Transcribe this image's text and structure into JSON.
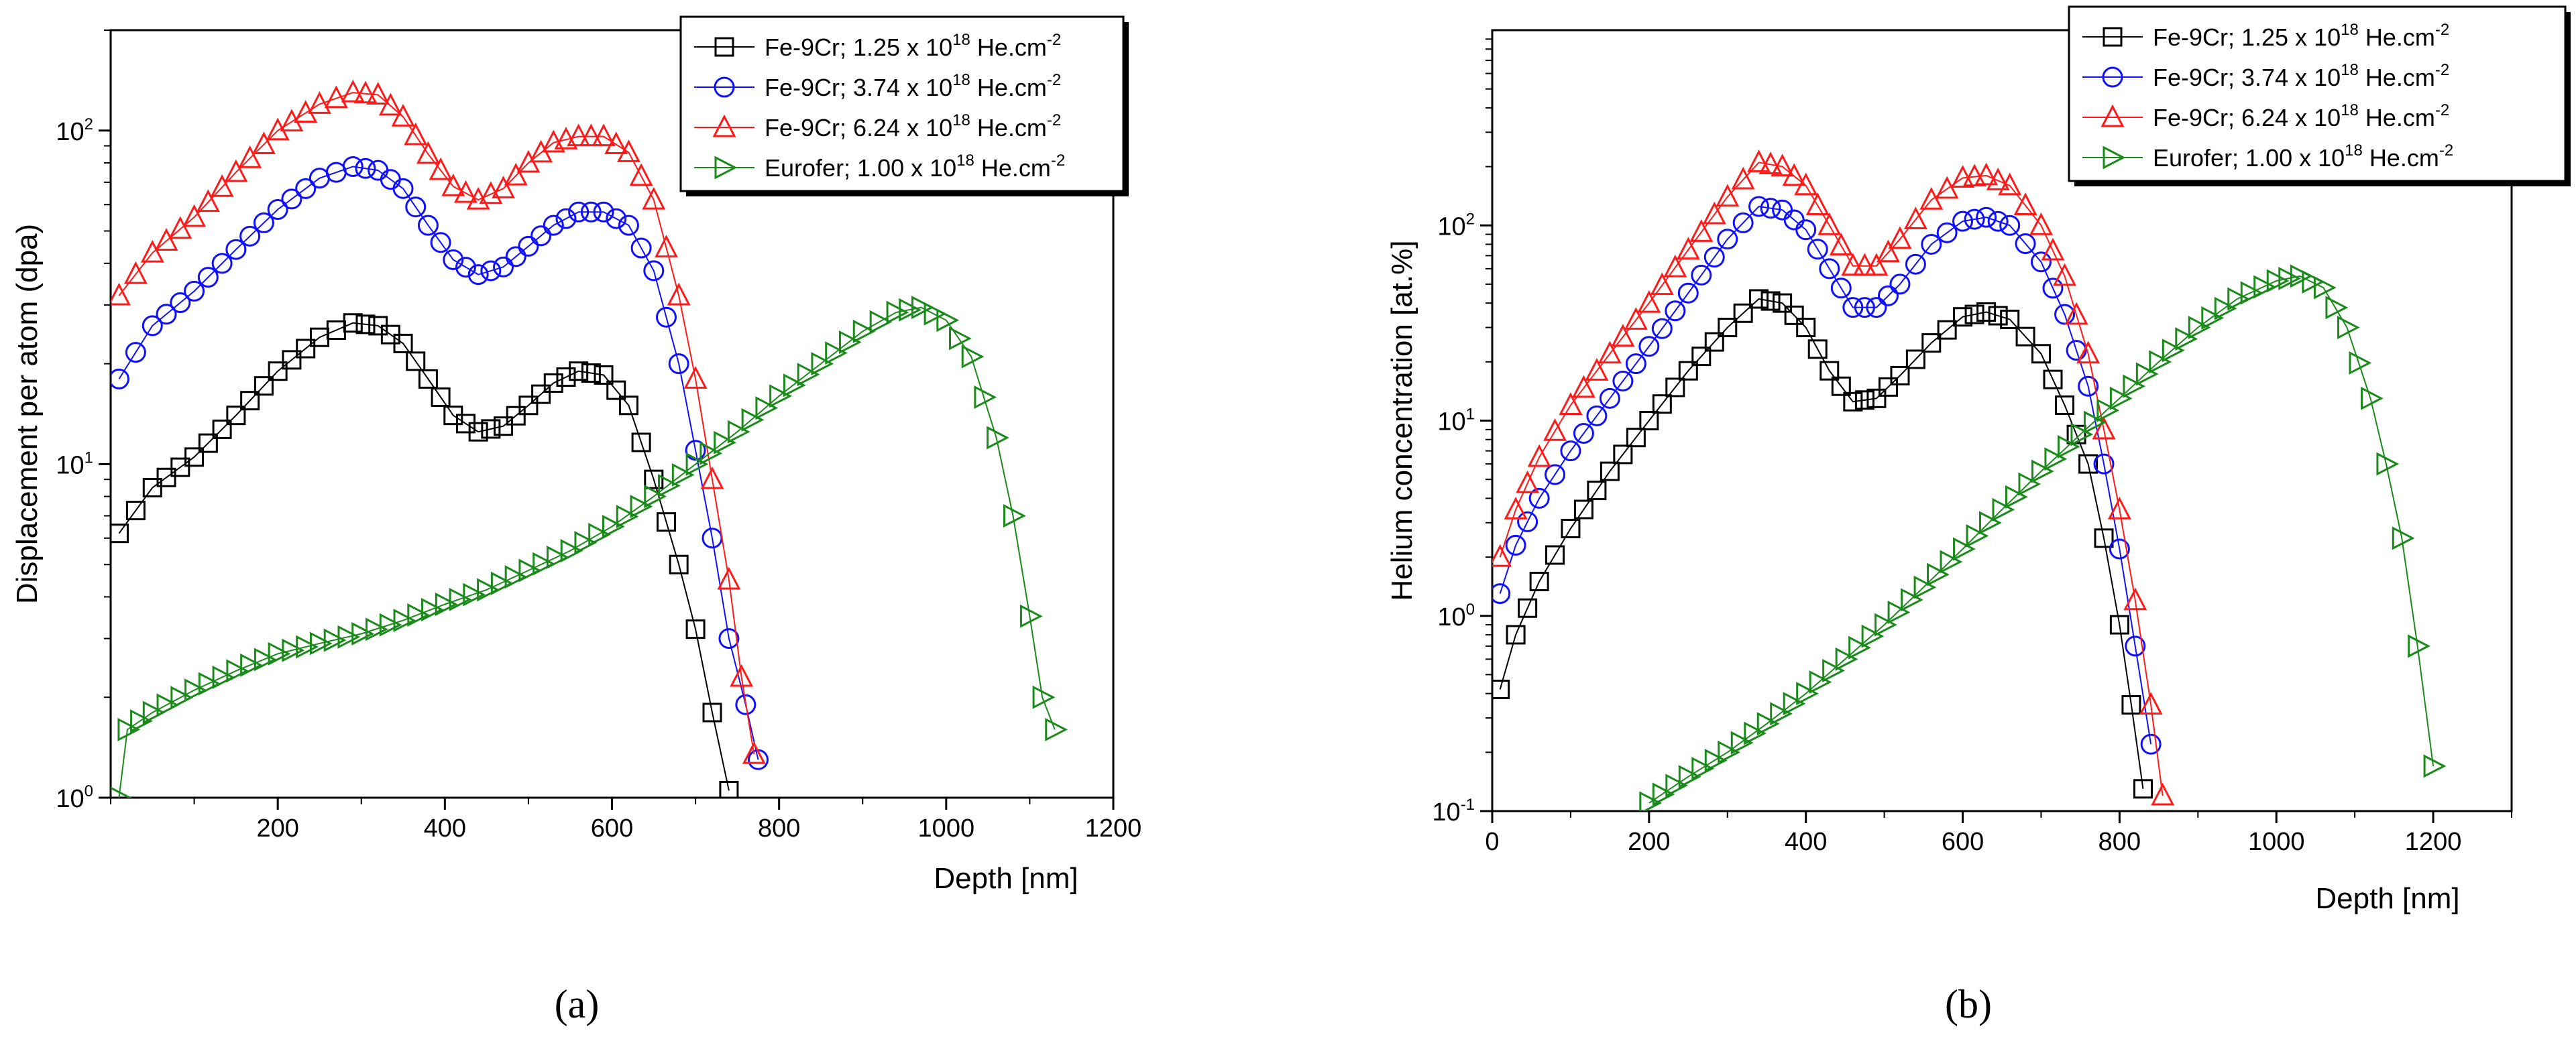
{
  "panel_labels": [
    "(a)",
    "(b)"
  ],
  "colors": {
    "Fe-9Cr 1.25": "#000000",
    "Fe-9Cr 3.74": "#1010ff",
    "Fe-9Cr 6.24": "#ff1a1a",
    "Eurofer 1.00": "#1a8a1a"
  },
  "chart_data": [
    {
      "type": "scatter",
      "panel": "a",
      "xlabel": "Depth [nm]",
      "ylabel": "Displacement per atom (dpa)",
      "xlim": [
        0,
        1200
      ],
      "ylim": [
        1,
        200
      ],
      "yscale": "log",
      "x_ticks": [
        200,
        400,
        600,
        800,
        1000,
        1200
      ],
      "y_ticks": [
        {
          "value": 1,
          "base": "10",
          "exp": "0"
        },
        {
          "value": 10,
          "base": "10",
          "exp": "1"
        },
        {
          "value": 100,
          "base": "10",
          "exp": "2"
        }
      ],
      "legend_position": "top-right",
      "series": [
        {
          "name": "Fe-9Cr; 1.25 x 10",
          "name_exp": "18",
          "name_tail": " He.cm",
          "name_tail_exp": "-2",
          "marker": "square",
          "color": "#000000",
          "x": [
            10,
            50,
            100,
            150,
            200,
            250,
            290,
            320,
            350,
            380,
            410,
            440,
            470,
            500,
            530,
            560,
            590,
            620,
            650,
            680,
            700,
            720,
            740
          ],
          "y": [
            6.2,
            8.5,
            10.5,
            14,
            19,
            24,
            26.5,
            26,
            23,
            18,
            14,
            12.5,
            13,
            15,
            17.5,
            19,
            18.5,
            15,
            9,
            5,
            3.2,
            1.8,
            1.05
          ]
        },
        {
          "name": "Fe-9Cr; 3.74 x 10",
          "name_exp": "18",
          "name_tail": " He.cm",
          "name_tail_exp": "-2",
          "marker": "circle",
          "color": "#1010ff",
          "x": [
            10,
            50,
            100,
            150,
            200,
            250,
            290,
            320,
            350,
            380,
            410,
            440,
            470,
            500,
            530,
            560,
            590,
            620,
            650,
            680,
            700,
            720,
            740,
            760,
            775
          ],
          "y": [
            18,
            26,
            33,
            44,
            58,
            72,
            78,
            76,
            67,
            52,
            41,
            37,
            39,
            45,
            52,
            57,
            57,
            52,
            38,
            20,
            11,
            6,
            3,
            1.9,
            1.3
          ]
        },
        {
          "name": "Fe-9Cr; 6.24 x 10",
          "name_exp": "18",
          "name_tail": " He.cm",
          "name_tail_exp": "-2",
          "marker": "triangle-up",
          "color": "#ff1a1a",
          "x": [
            10,
            50,
            100,
            150,
            200,
            250,
            290,
            320,
            350,
            380,
            410,
            440,
            470,
            500,
            530,
            560,
            590,
            620,
            650,
            680,
            700,
            720,
            740,
            755,
            770
          ],
          "y": [
            32,
            43,
            55,
            75,
            100,
            120,
            130,
            128,
            110,
            85,
            68,
            62,
            67,
            80,
            92,
            96,
            96,
            86,
            62,
            32,
            18,
            9,
            4.5,
            2.3,
            1.35
          ]
        },
        {
          "name": "Eurofer; 1.00 x 10",
          "name_exp": "18",
          "name_tail": " He.cm",
          "name_tail_exp": "-2",
          "marker": "triangle-right",
          "color": "#1a8a1a",
          "x": [
            10,
            20,
            50,
            100,
            150,
            200,
            250,
            300,
            350,
            400,
            450,
            500,
            550,
            600,
            650,
            700,
            750,
            800,
            850,
            900,
            940,
            970,
            1000,
            1030,
            1060,
            1080,
            1100,
            1115,
            1130
          ],
          "y": [
            1.0,
            1.6,
            1.8,
            2.1,
            2.4,
            2.7,
            2.9,
            3.1,
            3.4,
            3.8,
            4.2,
            4.8,
            5.5,
            6.5,
            8,
            10,
            12.5,
            16,
            20,
            25,
            28.5,
            29.5,
            27,
            21,
            12,
            7,
            3.5,
            2.0,
            1.6
          ]
        }
      ]
    },
    {
      "type": "scatter",
      "panel": "b",
      "xlabel": "Depth [nm]",
      "ylabel": "Helium concentration [at.%]",
      "xlim": [
        0,
        1300
      ],
      "ylim": [
        0.1,
        1000
      ],
      "yscale": "log",
      "x_ticks": [
        0,
        200,
        400,
        600,
        800,
        1000,
        1200
      ],
      "y_ticks": [
        {
          "value": 0.1,
          "base": "10",
          "exp": "-1"
        },
        {
          "value": 1,
          "base": "10",
          "exp": "0"
        },
        {
          "value": 10,
          "base": "10",
          "exp": "1"
        },
        {
          "value": 100,
          "base": "10",
          "exp": "2"
        }
      ],
      "legend_position": "top-right",
      "series": [
        {
          "name": "Fe-9Cr; 1.25 x 10",
          "name_exp": "18",
          "name_tail": " He.cm",
          "name_tail_exp": "-2",
          "marker": "square",
          "color": "#000000",
          "x": [
            10,
            30,
            60,
            100,
            150,
            200,
            250,
            300,
            340,
            370,
            400,
            430,
            460,
            490,
            520,
            560,
            600,
            630,
            660,
            700,
            730,
            760,
            780,
            800,
            815,
            830
          ],
          "y": [
            0.42,
            0.8,
            1.5,
            2.8,
            5.5,
            10,
            18,
            30,
            42,
            40,
            30,
            18,
            12.5,
            13,
            17,
            25,
            34,
            36,
            33,
            22,
            12,
            6,
            2.5,
            0.9,
            0.35,
            0.13
          ]
        },
        {
          "name": "Fe-9Cr; 3.74 x 10",
          "name_exp": "18",
          "name_tail": " He.cm",
          "name_tail_exp": "-2",
          "marker": "circle",
          "color": "#1010ff",
          "x": [
            10,
            30,
            60,
            100,
            150,
            200,
            250,
            300,
            340,
            370,
            400,
            430,
            460,
            490,
            520,
            560,
            600,
            630,
            660,
            700,
            730,
            760,
            780,
            800,
            820,
            840
          ],
          "y": [
            1.3,
            2.3,
            4,
            7,
            13,
            24,
            45,
            85,
            125,
            120,
            95,
            60,
            38,
            38,
            50,
            80,
            105,
            110,
            100,
            65,
            35,
            15,
            6,
            2.2,
            0.7,
            0.22
          ]
        },
        {
          "name": "Fe-9Cr; 6.24 x 10",
          "name_exp": "18",
          "name_tail": " He.cm",
          "name_tail_exp": "-2",
          "marker": "triangle-up",
          "color": "#ff1a1a",
          "x": [
            10,
            30,
            60,
            100,
            150,
            200,
            250,
            300,
            340,
            370,
            400,
            430,
            460,
            490,
            520,
            560,
            600,
            630,
            660,
            700,
            730,
            760,
            780,
            800,
            820,
            840,
            855
          ],
          "y": [
            2.0,
            3.5,
            6.5,
            12,
            22,
            40,
            75,
            140,
            210,
            200,
            160,
            100,
            62,
            62,
            85,
            135,
            175,
            180,
            160,
            100,
            55,
            22,
            9,
            3.5,
            1.2,
            0.35,
            0.12
          ]
        },
        {
          "name": "Eurofer; 1.00 x 10",
          "name_exp": "18",
          "name_tail": " He.cm",
          "name_tail_exp": "-2",
          "marker": "triangle-right",
          "color": "#1a8a1a",
          "x": [
            200,
            250,
            300,
            350,
            400,
            450,
            500,
            550,
            600,
            650,
            700,
            750,
            800,
            850,
            900,
            950,
            1000,
            1030,
            1060,
            1090,
            1120,
            1140,
            1160,
            1180,
            1200
          ],
          "y": [
            0.11,
            0.15,
            0.2,
            0.28,
            0.4,
            0.6,
            0.9,
            1.4,
            2.2,
            3.5,
            5.5,
            8.5,
            13,
            20,
            30,
            42,
            52,
            55,
            48,
            30,
            13,
            6,
            2.5,
            0.7,
            0.17
          ]
        }
      ]
    }
  ]
}
